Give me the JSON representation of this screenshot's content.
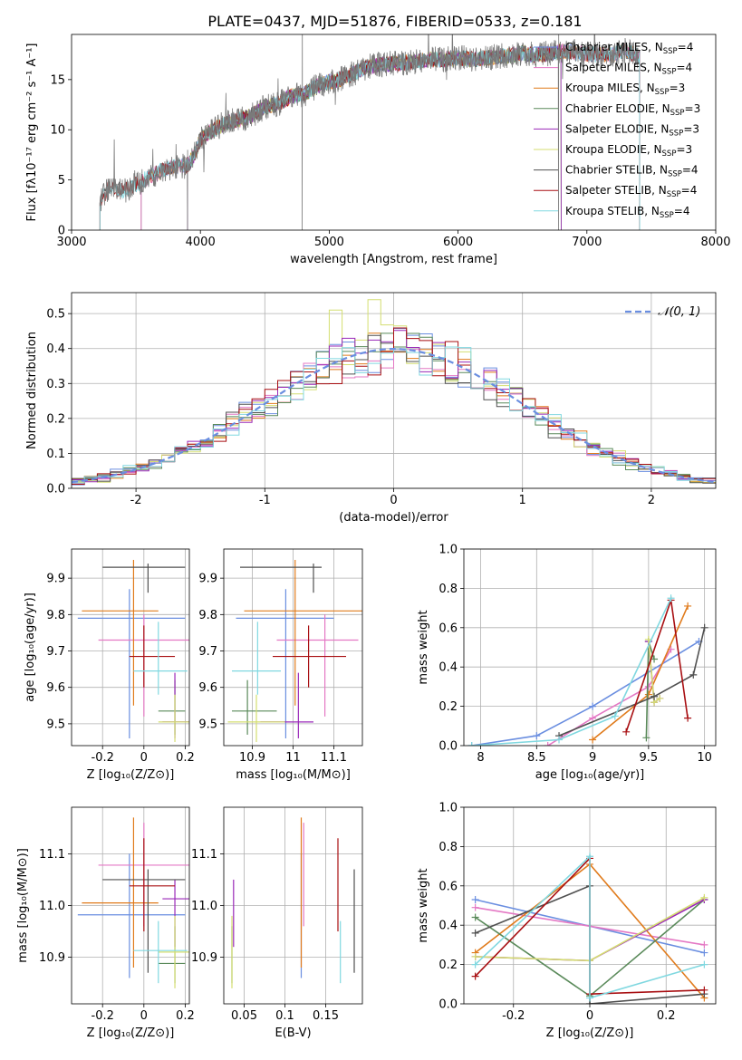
{
  "figure": {
    "title": "PLATE=0437, MJD=51876, FIBERID=0533, z=0.181"
  },
  "colors": {
    "Chabrier MILES": "#6a8ee0",
    "Salpeter MILES": "#e478c4",
    "Kroupa MILES": "#e07b1c",
    "Chabrier ELODIE": "#5a8a5a",
    "Salpeter ELODIE": "#9a28b8",
    "Kroupa ELODIE": "#d4de70",
    "Chabrier STELIB": "#505050",
    "Salpeter STELIB": "#a80f12",
    "Kroupa STELIB": "#80d8e0",
    "data": "#7a7a7a",
    "normal": "#6a8ee0"
  },
  "chart_data": [
    {
      "id": "spectrum",
      "type": "line",
      "xlabel": "wavelength [Angstrom, rest frame]",
      "ylabel": "Flux [fλ10⁻¹⁷ erg cm⁻² s⁻¹ A⁻¹]",
      "xlim": [
        3000,
        8000
      ],
      "ylim": [
        0,
        19.5
      ],
      "xticks": [
        3000,
        4000,
        5000,
        6000,
        7000,
        8000
      ],
      "yticks": [
        0,
        5,
        10,
        15
      ],
      "legend_position": "top-right",
      "legend": [
        {
          "model": "Chabrier MILES",
          "label": "Chabrier MILES, N",
          "sub": "SSP",
          "suffix": "=4"
        },
        {
          "model": "Salpeter MILES",
          "label": "Salpeter MILES, N",
          "sub": "SSP",
          "suffix": "=4"
        },
        {
          "model": "Kroupa MILES",
          "label": "Kroupa MILES, N",
          "sub": "SSP",
          "suffix": "=3"
        },
        {
          "model": "Chabrier ELODIE",
          "label": "Chabrier ELODIE, N",
          "sub": "SSP",
          "suffix": "=3"
        },
        {
          "model": "Salpeter ELODIE",
          "label": "Salpeter ELODIE, N",
          "sub": "SSP",
          "suffix": "=3"
        },
        {
          "model": "Kroupa ELODIE",
          "label": "Kroupa ELODIE, N",
          "sub": "SSP",
          "suffix": "=3"
        },
        {
          "model": "Chabrier STELIB",
          "label": "Chabrier STELIB, N",
          "sub": "SSP",
          "suffix": "=4"
        },
        {
          "model": "Salpeter STELIB",
          "label": "Salpeter STELIB, N",
          "sub": "SSP",
          "suffix": "=4"
        },
        {
          "model": "Kroupa STELIB",
          "label": "Kroupa STELIB, N",
          "sub": "SSP",
          "suffix": "=4"
        }
      ],
      "data_wavelength": [
        3220,
        3300,
        3400,
        3500,
        3600,
        3700,
        3800,
        3900,
        3950,
        4000,
        4100,
        4200,
        4300,
        4400,
        4500,
        4600,
        4700,
        4800,
        4900,
        5000,
        5100,
        5200,
        5300,
        5400,
        5500,
        5600,
        5700,
        5800,
        5900,
        6000,
        6100,
        6200,
        6300,
        6400,
        6500,
        6600,
        6700,
        6800,
        6900,
        7000,
        7100,
        7200,
        7300,
        7400
      ],
      "data_flux": [
        3.0,
        4.3,
        3.9,
        4.5,
        5.3,
        5.9,
        6.4,
        6.4,
        7.5,
        9.0,
        10.0,
        10.7,
        11.0,
        11.4,
        12.3,
        12.6,
        13.3,
        13.5,
        14.3,
        14.8,
        15.1,
        15.7,
        16.3,
        16.5,
        16.6,
        16.7,
        16.8,
        17.0,
        17.0,
        17.2,
        17.0,
        17.1,
        17.3,
        17.4,
        17.7,
        17.4,
        17.6,
        17.8,
        17.7,
        17.5,
        17.5,
        17.5,
        17.9,
        17.3
      ],
      "model_start": {
        "Kroupa MILES": 3540,
        "Chabrier MILES": 3540,
        "Salpeter MILES": 3540,
        "Kroupa ELODIE": 3900,
        "Chabrier ELODIE": 3900,
        "Salpeter ELODIE": 3900,
        "Chabrier STELIB": 3220,
        "Salpeter STELIB": 3220,
        "Kroupa STELIB": 3220
      },
      "model_end": {
        "Kroupa MILES": 7410,
        "Chabrier MILES": 7410,
        "Salpeter MILES": 7410,
        "Kroupa ELODIE": 6800,
        "Chabrier ELODIE": 6800,
        "Salpeter ELODIE": 6800,
        "Chabrier STELIB": 7410,
        "Salpeter STELIB": 7410,
        "Kroupa STELIB": 7410
      }
    },
    {
      "id": "residuals",
      "type": "step",
      "xlabel": "(data-model)/error",
      "ylabel": "Normed distribution",
      "xlim": [
        -2.5,
        2.5
      ],
      "ylim": [
        0,
        0.56
      ],
      "xticks": [
        -2,
        -1,
        0,
        1,
        2
      ],
      "yticks": [
        0.0,
        0.1,
        0.2,
        0.3,
        0.4,
        0.5
      ],
      "legend_position": "top-right",
      "legend": [
        {
          "label": "𝒩(0, 1)"
        }
      ],
      "bin_width": 0.1
    },
    {
      "id": "age-vs-Z",
      "type": "scatter",
      "xlabel": "Z [log₁₀(Z/Z⊙)]",
      "ylabel": "age  [log₁₀(age/yr)]",
      "xlim": [
        -0.35,
        0.22
      ],
      "ylim": [
        9.44,
        9.98
      ],
      "xticks": [
        -0.2,
        0.0,
        0.2
      ],
      "yticks": [
        9.5,
        9.6,
        9.7,
        9.8,
        9.9
      ]
    },
    {
      "id": "age-vs-mass",
      "type": "scatter",
      "xlabel": "mass [log₁₀(M/M⊙)]",
      "ylabel": "",
      "xlim": [
        10.83,
        11.17
      ],
      "ylim": [
        9.44,
        9.98
      ],
      "xticks": [
        10.9,
        11.0,
        11.1
      ],
      "yticks": [
        9.5,
        9.6,
        9.7,
        9.8,
        9.9
      ]
    },
    {
      "id": "weight-vs-age",
      "type": "line",
      "xlabel": "age  [log₁₀(age/yr)]",
      "ylabel": "mass weight",
      "xlim": [
        7.85,
        10.1
      ],
      "ylim": [
        0,
        1.0
      ],
      "xticks": [
        8.0,
        8.5,
        9.0,
        9.5,
        10.0
      ],
      "yticks": [
        0.0,
        0.2,
        0.4,
        0.6,
        0.8,
        1.0
      ]
    },
    {
      "id": "mass-vs-Z",
      "type": "scatter",
      "xlabel": "Z [log₁₀(Z/Z⊙)]",
      "ylabel": "mass [log₁₀(M/M⊙)]",
      "xlim": [
        -0.35,
        0.22
      ],
      "ylim": [
        10.81,
        11.19
      ],
      "xticks": [
        -0.2,
        0.0,
        0.2
      ],
      "yticks": [
        10.9,
        11.0,
        11.1
      ]
    },
    {
      "id": "mass-vs-ebv",
      "type": "scatter",
      "xlabel": "E(B-V)",
      "ylabel": "",
      "xlim": [
        0.025,
        0.195
      ],
      "ylim": [
        10.81,
        11.19
      ],
      "xticks": [
        0.05,
        0.1,
        0.15
      ],
      "yticks": [
        10.9,
        11.0,
        11.1
      ]
    },
    {
      "id": "weight-vs-Z",
      "type": "line",
      "xlabel": "Z [log₁₀(Z/Z⊙)]",
      "ylabel": "mass weight",
      "xlim": [
        -0.33,
        0.33
      ],
      "ylim": [
        0,
        1.0
      ],
      "xticks": [
        -0.2,
        0.0,
        0.2
      ],
      "yticks": [
        0.0,
        0.2,
        0.4,
        0.6,
        0.8,
        1.0
      ]
    }
  ],
  "fits": [
    {
      "model": "Chabrier MILES",
      "Z": -0.07,
      "Z_err": [
        0.25,
        0.27
      ],
      "age": 9.79,
      "age_lo": 9.46,
      "age_hi": 9.87,
      "mass": 10.982,
      "mass_lo": 10.86,
      "mass_hi": 11.1,
      "ebv": 0.12,
      "age_w": [
        [
          7.92,
          0.0
        ],
        [
          8.5,
          0.05
        ],
        [
          9.0,
          0.2
        ],
        [
          9.95,
          0.53
        ]
      ],
      "Z_w": [
        [
          -0.3,
          0.53
        ],
        [
          0.3,
          0.26
        ]
      ]
    },
    {
      "model": "Salpeter MILES",
      "Z": 0.0,
      "Z_err": [
        0.22,
        0.27
      ],
      "age": 9.73,
      "age_lo": 9.52,
      "age_hi": 9.8,
      "mass": 11.078,
      "mass_lo": 10.96,
      "mass_hi": 11.16,
      "ebv": 0.123,
      "age_w": [
        [
          8.6,
          0.0
        ],
        [
          9.0,
          0.14
        ],
        [
          9.5,
          0.3
        ],
        [
          9.7,
          0.49
        ]
      ],
      "Z_w": [
        [
          -0.3,
          0.49
        ],
        [
          0.3,
          0.3
        ]
      ]
    },
    {
      "model": "Kroupa MILES",
      "Z": -0.05,
      "Z_err": [
        0.25,
        0.12
      ],
      "age": 9.81,
      "age_lo": 9.55,
      "age_hi": 9.95,
      "mass": 11.005,
      "mass_lo": 10.88,
      "mass_hi": 11.17,
      "ebv": 0.12,
      "age_w": [
        [
          9.0,
          0.03
        ],
        [
          9.5,
          0.26
        ],
        [
          9.85,
          0.71
        ]
      ],
      "Z_w": [
        [
          -0.3,
          0.26
        ],
        [
          0.0,
          0.71
        ],
        [
          0.3,
          0.03
        ]
      ]
    },
    {
      "model": "Chabrier ELODIE",
      "Z": 0.15,
      "Z_err": [
        0.08,
        0.05
      ],
      "age": 9.535,
      "age_lo": 9.47,
      "age_hi": 9.62,
      "mass": 10.888,
      "mass_lo": 10.85,
      "mass_hi": 10.96,
      "ebv": 0.035,
      "age_w": [
        [
          9.48,
          0.04
        ],
        [
          9.5,
          0.53
        ],
        [
          9.55,
          0.44
        ]
      ],
      "Z_w": [
        [
          -0.3,
          0.44
        ],
        [
          0.0,
          0.04
        ],
        [
          0.3,
          0.53
        ]
      ]
    },
    {
      "model": "Salpeter ELODIE",
      "Z": 0.15,
      "Z_err": [
        0.06,
        0.08
      ],
      "age": 9.505,
      "age_lo": 9.46,
      "age_hi": 9.64,
      "mass": 11.013,
      "mass_lo": 10.92,
      "mass_hi": 11.05,
      "ebv": 0.037,
      "age_w": [
        [
          9.5,
          0.53
        ],
        [
          9.55,
          0.22
        ],
        [
          9.6,
          0.24
        ]
      ],
      "Z_w": [
        [
          -0.3,
          0.24
        ],
        [
          0.0,
          0.22
        ],
        [
          0.3,
          0.53
        ]
      ]
    },
    {
      "model": "Kroupa ELODIE",
      "Z": 0.15,
      "Z_err": [
        0.08,
        0.08
      ],
      "age": 9.505,
      "age_lo": 9.45,
      "age_hi": 9.58,
      "mass": 10.91,
      "mass_lo": 10.84,
      "mass_hi": 10.98,
      "ebv": 0.035,
      "age_w": [
        [
          9.5,
          0.54
        ],
        [
          9.55,
          0.22
        ],
        [
          9.6,
          0.24
        ]
      ],
      "Z_w": [
        [
          -0.3,
          0.24
        ],
        [
          0.0,
          0.22
        ],
        [
          0.3,
          0.54
        ]
      ]
    },
    {
      "model": "Chabrier STELIB",
      "Z": 0.02,
      "Z_err": [
        0.22,
        0.18
      ],
      "age": 9.93,
      "age_lo": 9.86,
      "age_hi": 9.94,
      "mass": 11.05,
      "mass_lo": 10.87,
      "mass_hi": 11.07,
      "ebv": 0.185,
      "age_w": [
        [
          8.7,
          0.05
        ],
        [
          9.55,
          0.25
        ],
        [
          9.9,
          0.36
        ],
        [
          10.0,
          0.6
        ]
      ],
      "Z_w": [
        [
          -0.3,
          0.36
        ],
        [
          0.0,
          0.6
        ],
        [
          0.0,
          0.0
        ],
        [
          0.3,
          0.05
        ]
      ]
    },
    {
      "model": "Salpeter STELIB",
      "Z": 0.0,
      "Z_err": [
        0.07,
        0.15
      ],
      "age": 9.685,
      "age_lo": 9.6,
      "age_hi": 9.77,
      "mass": 11.038,
      "mass_lo": 10.95,
      "mass_hi": 11.13,
      "ebv": 0.165,
      "age_w": [
        [
          9.3,
          0.07
        ],
        [
          9.7,
          0.74
        ],
        [
          9.85,
          0.14
        ]
      ],
      "Z_w": [
        [
          -0.3,
          0.14
        ],
        [
          0.0,
          0.74
        ],
        [
          0.0,
          0.05
        ],
        [
          0.3,
          0.07
        ]
      ]
    },
    {
      "model": "Kroupa STELIB",
      "Z": 0.07,
      "Z_err": [
        0.12,
        0.14
      ],
      "age": 9.645,
      "age_lo": 9.58,
      "age_hi": 9.78,
      "mass": 10.913,
      "mass_lo": 10.85,
      "mass_hi": 10.97,
      "ebv": 0.168,
      "age_w": [
        [
          7.92,
          0.0
        ],
        [
          8.7,
          0.03
        ],
        [
          9.2,
          0.15
        ],
        [
          9.7,
          0.75
        ]
      ],
      "Z_w": [
        [
          -0.3,
          0.2
        ],
        [
          0.0,
          0.75
        ],
        [
          0.0,
          0.03
        ],
        [
          0.3,
          0.2
        ]
      ]
    }
  ]
}
